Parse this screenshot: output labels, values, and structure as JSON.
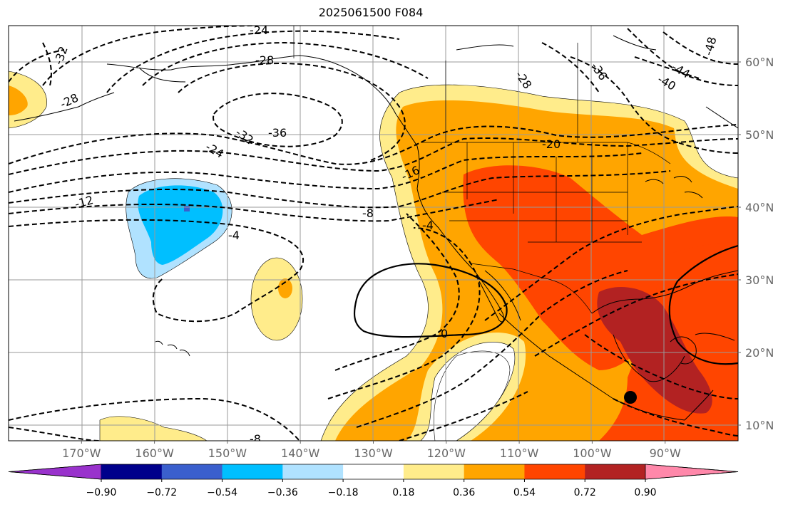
{
  "title": "2025061500 F084",
  "map": {
    "lon_ticks": [
      "170°W",
      "160°W",
      "150°W",
      "140°W",
      "130°W",
      "120°W",
      "110°W",
      "100°W",
      "90°W"
    ],
    "lat_ticks": [
      "60°N",
      "50°N",
      "40°N",
      "30°N",
      "20°N",
      "10°N"
    ],
    "lon_range": [
      -180,
      -80
    ],
    "lat_range": [
      7,
      65
    ],
    "grid": true,
    "coastlines": true,
    "marker": {
      "lon": -94.8,
      "lat": 13.8,
      "label": ""
    }
  },
  "colorbar": {
    "levels": [
      "−0.90",
      "−0.72",
      "−0.54",
      "−0.36",
      "−0.18",
      "0.18",
      "0.36",
      "0.54",
      "0.72",
      "0.90"
    ],
    "colors": [
      "#9932CC",
      "#00008B",
      "#3A5FCD",
      "#00BFFF",
      "#B0E2FF",
      "#FFFFFF",
      "#FFEC8B",
      "#FFA500",
      "#FF4500",
      "#B22222",
      "#FF88AA"
    ],
    "extend": "both"
  },
  "contour_labels": [
    {
      "text": "-24"
    },
    {
      "text": "-28"
    },
    {
      "text": "-32"
    },
    {
      "text": "-28"
    },
    {
      "text": "-32"
    },
    {
      "text": "-36"
    },
    {
      "text": "-24"
    },
    {
      "text": "-12"
    },
    {
      "text": "-4"
    },
    {
      "text": "-8"
    },
    {
      "text": "-16"
    },
    {
      "text": "-4"
    },
    {
      "text": "0"
    },
    {
      "text": "-20"
    },
    {
      "text": "-28"
    },
    {
      "text": "-36"
    },
    {
      "text": "-40"
    },
    {
      "text": "-44"
    },
    {
      "text": "-48"
    },
    {
      "text": "-8"
    }
  ]
}
